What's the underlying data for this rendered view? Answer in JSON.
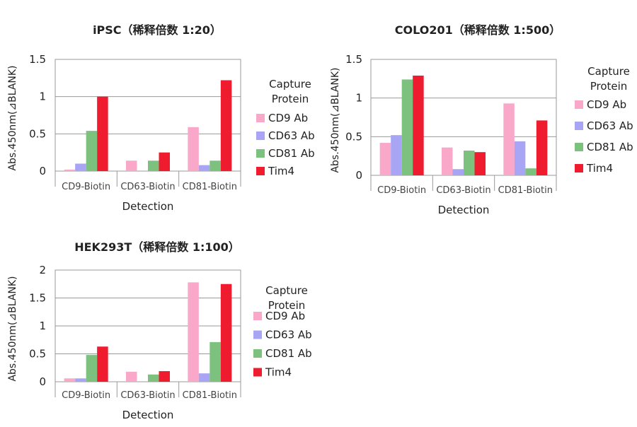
{
  "chart_data": [
    {
      "type": "bar",
      "title": "iPSC（稀释倍数 1:20）",
      "xlabel": "Detection",
      "ylabel": "Abs.450nm(⊿BLANK)",
      "ylim": [
        0,
        1.5
      ],
      "yticks": [
        "0",
        "0.5",
        "1",
        "1.5"
      ],
      "categories": [
        "CD9-Biotin",
        "CD63-Biotin",
        "CD81-Biotin"
      ],
      "legend_title": "Capture Protein",
      "series": [
        {
          "name": "CD9 Ab",
          "color": "#F9A8C9",
          "values": [
            0.02,
            0.14,
            0.59
          ]
        },
        {
          "name": "CD63 Ab",
          "color": "#A7A5F4",
          "values": [
            0.1,
            0.0,
            0.08
          ]
        },
        {
          "name": "CD81 Ab",
          "color": "#7DC17F",
          "values": [
            0.54,
            0.14,
            0.14
          ]
        },
        {
          "name": "Tim4",
          "color": "#EE1C2E",
          "values": [
            1.0,
            0.25,
            1.22
          ]
        }
      ]
    },
    {
      "type": "bar",
      "title": "COLO201（稀释倍数 1:500）",
      "xlabel": "Detection",
      "ylabel": "Abs.450nm(⊿BLANK)",
      "ylim": [
        0,
        1.5
      ],
      "yticks": [
        "0",
        "0.5",
        "1",
        "1.5"
      ],
      "categories": [
        "CD9-Biotin",
        "CD63-Biotin",
        "CD81-Biotin"
      ],
      "legend_title": "Capture Protein",
      "series": [
        {
          "name": "CD9 Ab",
          "color": "#F9A8C9",
          "values": [
            0.42,
            0.36,
            0.93
          ]
        },
        {
          "name": "CD63 Ab",
          "color": "#A7A5F4",
          "values": [
            0.52,
            0.08,
            0.44
          ]
        },
        {
          "name": "CD81 Ab",
          "color": "#7DC17F",
          "values": [
            1.24,
            0.32,
            0.09
          ]
        },
        {
          "name": "Tim4",
          "color": "#EE1C2E",
          "values": [
            1.29,
            0.3,
            0.71
          ]
        }
      ]
    },
    {
      "type": "bar",
      "title": "HEK293T（稀释倍数 1:100）",
      "xlabel": "Detection",
      "ylabel": "Abs.450nm(⊿BLANK)",
      "ylim": [
        0,
        2
      ],
      "yticks": [
        "0",
        "0.5",
        "1",
        "1.5",
        "2"
      ],
      "categories": [
        "CD9-Biotin",
        "CD63-Biotin",
        "CD81-Biotin"
      ],
      "legend_title": "Capture Protein",
      "series": [
        {
          "name": "CD9 Ab",
          "color": "#F9A8C9",
          "values": [
            0.06,
            0.18,
            1.78
          ]
        },
        {
          "name": "CD63 Ab",
          "color": "#A7A5F4",
          "values": [
            0.06,
            0.0,
            0.15
          ]
        },
        {
          "name": "CD81 Ab",
          "color": "#7DC17F",
          "values": [
            0.48,
            0.13,
            0.71
          ]
        },
        {
          "name": "Tim4",
          "color": "#EE1C2E",
          "values": [
            0.63,
            0.19,
            1.75
          ]
        }
      ]
    }
  ]
}
